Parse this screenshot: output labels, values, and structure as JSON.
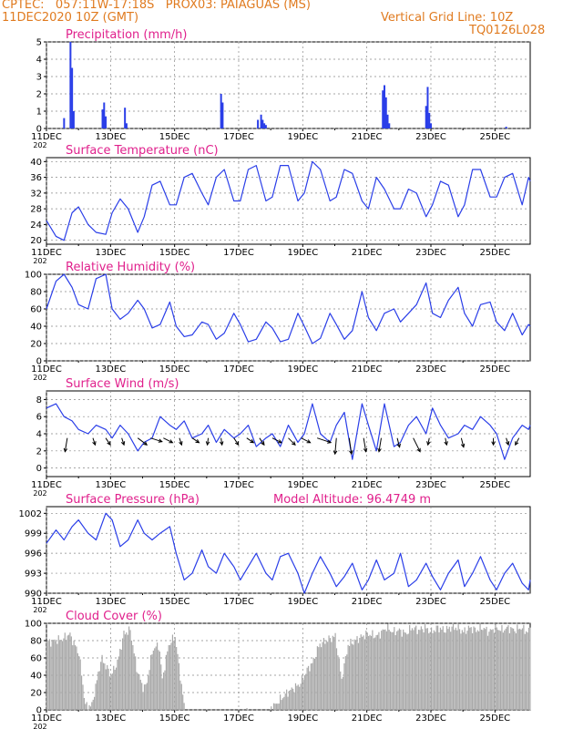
{
  "header": {
    "line1_left": "CPTEC:   057:11W-17:18S   PROX03: PAIAGUAS (MS)",
    "line2_left": "11DEC2020 10Z (GMT)",
    "line2_right": "Vertical Grid Line: 10Z",
    "line3_right": "TQ0126L028"
  },
  "colors": {
    "header": "#e07b20",
    "title": "#e0208c",
    "series": "#2a3ee8",
    "cloud": "#a9a9a9",
    "arrow": "#000000"
  },
  "x_axis": {
    "tick_labels": [
      "11DEC",
      "13DEC",
      "15DEC",
      "17DEC",
      "19DEC",
      "21DEC",
      "23DEC",
      "25DEC"
    ],
    "tick_days": [
      0,
      2,
      4,
      6,
      8,
      10,
      12,
      14
    ],
    "range_days": [
      0,
      15.1
    ],
    "gridlines": "dotted vertical every 24h at 10Z",
    "year_fragment": "202"
  },
  "chart_data": [
    {
      "type": "bar",
      "title": "Precipitation (mm/h)",
      "ylim": [
        0,
        5
      ],
      "yticks": [
        "0",
        "1",
        "2",
        "3",
        "4",
        "5"
      ],
      "series": [
        {
          "x": [
            0.55,
            0.75,
            0.8,
            0.85,
            1.75,
            1.8,
            1.85,
            2.45,
            2.5,
            5.45,
            5.5,
            6.6,
            6.7,
            6.75,
            6.8,
            6.85,
            10.5,
            10.55,
            10.6,
            10.65,
            10.7,
            11.85,
            11.9,
            11.95,
            12.0,
            14.35
          ],
          "values": [
            0.6,
            5.0,
            3.5,
            1.0,
            1.1,
            1.5,
            0.7,
            1.2,
            0.3,
            2.0,
            1.5,
            0.5,
            0.8,
            0.5,
            0.3,
            0.2,
            2.2,
            2.5,
            1.8,
            0.8,
            0.3,
            1.3,
            2.4,
            0.9,
            0.3,
            0.1
          ]
        }
      ]
    },
    {
      "type": "line",
      "title": "Surface Temperature (nC)",
      "ylim": [
        19,
        41
      ],
      "yticks": [
        "20",
        "24",
        "28",
        "32",
        "36",
        "40"
      ],
      "series": [
        {
          "x": [
            0,
            0.3,
            0.55,
            0.8,
            1.0,
            1.3,
            1.55,
            1.85,
            2.05,
            2.3,
            2.55,
            2.85,
            3.05,
            3.3,
            3.55,
            3.85,
            4.05,
            4.3,
            4.55,
            4.85,
            5.05,
            5.3,
            5.55,
            5.85,
            6.05,
            6.3,
            6.55,
            6.85,
            7.05,
            7.3,
            7.55,
            7.85,
            8.05,
            8.3,
            8.55,
            8.85,
            9.05,
            9.3,
            9.55,
            9.85,
            10.05,
            10.3,
            10.55,
            10.85,
            11.05,
            11.3,
            11.55,
            11.85,
            12.05,
            12.3,
            12.55,
            12.85,
            13.05,
            13.3,
            13.55,
            13.85,
            14.05,
            14.3,
            14.55,
            14.85,
            15.05,
            15.1
          ],
          "values": [
            25,
            21,
            20,
            27,
            28.5,
            24,
            22,
            21.5,
            27,
            30.5,
            28,
            22,
            26,
            34,
            35,
            29,
            29,
            36,
            37,
            32,
            29,
            36,
            38,
            30,
            30,
            38,
            39,
            30,
            31,
            39,
            39,
            30,
            32,
            40,
            38,
            30,
            31,
            38,
            37,
            30,
            28,
            36,
            33,
            28,
            28,
            33,
            32,
            26,
            29,
            35,
            34,
            26,
            29,
            38,
            38,
            31,
            31,
            36,
            37,
            29,
            36,
            35
          ]
        }
      ]
    },
    {
      "type": "line",
      "title": "Relative Humidity (%)",
      "ylim": [
        0,
        100
      ],
      "yticks": [
        "0",
        "20",
        "40",
        "60",
        "80",
        "100"
      ],
      "series": [
        {
          "x": [
            0,
            0.3,
            0.55,
            0.8,
            1.0,
            1.3,
            1.55,
            1.85,
            2.05,
            2.3,
            2.55,
            2.85,
            3.05,
            3.3,
            3.55,
            3.85,
            4.05,
            4.3,
            4.55,
            4.85,
            5.05,
            5.3,
            5.55,
            5.85,
            6.05,
            6.3,
            6.55,
            6.85,
            7.05,
            7.3,
            7.55,
            7.85,
            8.05,
            8.3,
            8.55,
            8.85,
            9.05,
            9.3,
            9.55,
            9.85,
            10.05,
            10.3,
            10.55,
            10.85,
            11.05,
            11.3,
            11.55,
            11.85,
            12.05,
            12.3,
            12.55,
            12.85,
            13.05,
            13.3,
            13.55,
            13.85,
            14.05,
            14.3,
            14.55,
            14.85,
            15.05,
            15.1
          ],
          "values": [
            60,
            92,
            100,
            85,
            65,
            60,
            95,
            100,
            60,
            48,
            55,
            70,
            60,
            38,
            42,
            68,
            40,
            28,
            30,
            45,
            42,
            25,
            32,
            55,
            42,
            22,
            25,
            45,
            38,
            22,
            25,
            55,
            40,
            20,
            26,
            55,
            42,
            25,
            35,
            80,
            50,
            35,
            55,
            60,
            45,
            55,
            65,
            90,
            55,
            50,
            70,
            85,
            55,
            40,
            65,
            68,
            45,
            35,
            55,
            30,
            42,
            40
          ]
        }
      ]
    },
    {
      "type": "line",
      "title": "Surface Wind (m/s)",
      "ylim": [
        -1,
        9
      ],
      "yticks": [
        "0",
        "2",
        "4",
        "6",
        "8"
      ],
      "series": [
        {
          "x": [
            0,
            0.3,
            0.55,
            0.8,
            1.0,
            1.3,
            1.55,
            1.85,
            2.05,
            2.3,
            2.55,
            2.85,
            3.05,
            3.3,
            3.55,
            3.85,
            4.05,
            4.3,
            4.55,
            4.85,
            5.05,
            5.3,
            5.55,
            5.85,
            6.05,
            6.3,
            6.55,
            6.85,
            7.05,
            7.3,
            7.55,
            7.85,
            8.05,
            8.3,
            8.55,
            8.85,
            9.05,
            9.3,
            9.55,
            9.85,
            10.05,
            10.3,
            10.55,
            10.85,
            11.05,
            11.3,
            11.55,
            11.85,
            12.05,
            12.3,
            12.55,
            12.85,
            13.05,
            13.3,
            13.55,
            13.85,
            14.05,
            14.3,
            14.55,
            14.85,
            15.05,
            15.1
          ],
          "values": [
            7,
            7.5,
            6,
            5.5,
            4.5,
            4,
            5,
            4.5,
            3.5,
            5,
            4,
            2,
            3,
            3.5,
            6,
            5,
            4.5,
            5.5,
            3.5,
            4,
            5,
            3,
            4.5,
            3.5,
            4,
            5,
            2.5,
            3.5,
            4,
            2.5,
            5,
            3,
            4,
            7.5,
            4,
            3,
            5,
            6.5,
            1,
            7.5,
            5,
            2,
            7.5,
            2.5,
            3,
            5,
            6,
            4,
            7,
            5,
            3.5,
            4,
            5,
            4.5,
            6,
            5,
            4,
            1,
            3.5,
            5,
            4.5,
            5
          ]
        }
      ],
      "vectors": {
        "x": [
          0.65,
          1.45,
          1.85,
          2.35,
          2.85,
          3.25,
          3.65,
          4.15,
          4.55,
          5.05,
          5.45,
          5.85,
          6.25,
          6.65,
          7.05,
          7.55,
          7.95,
          8.45,
          9.05,
          9.45,
          9.9,
          10.45,
          10.95,
          11.45,
          11.95,
          12.45,
          12.95,
          13.95,
          14.35,
          14.75
        ],
        "u": [
          -0.5,
          0.5,
          1.0,
          0.5,
          2.0,
          2.5,
          2.0,
          0.5,
          1.5,
          -0.2,
          0.2,
          1.0,
          1.5,
          1.0,
          2.0,
          1.5,
          2.0,
          3.0,
          -0.3,
          0.5,
          0.5,
          -0.5,
          0.5,
          1.5,
          -0.3,
          0.3,
          0.5,
          0.0,
          0.5,
          -0.8
        ],
        "v": [
          -3.0,
          -1.5,
          -1.5,
          -1.5,
          -1.5,
          -0.8,
          -1.0,
          -1.5,
          -1.0,
          -1.5,
          -1.5,
          -1.5,
          -1.0,
          -1.5,
          -1.0,
          -1.5,
          -1.0,
          -1.0,
          -3.5,
          -3.5,
          -3.0,
          -3.0,
          -2.0,
          -3.0,
          -1.5,
          -1.5,
          -2.0,
          -1.5,
          -1.5,
          -1.5
        ]
      }
    },
    {
      "type": "line",
      "title": "Surface Pressure (hPa)",
      "annotation": "Model Altitude: 96.4749  m",
      "ylim": [
        990,
        1003
      ],
      "yticks": [
        "990",
        "993",
        "996",
        "999",
        "1002"
      ],
      "series": [
        {
          "x": [
            0,
            0.3,
            0.55,
            0.8,
            1.0,
            1.3,
            1.55,
            1.85,
            2.05,
            2.3,
            2.55,
            2.85,
            3.05,
            3.3,
            3.55,
            3.85,
            4.05,
            4.3,
            4.55,
            4.85,
            5.05,
            5.3,
            5.55,
            5.85,
            6.05,
            6.3,
            6.55,
            6.85,
            7.05,
            7.3,
            7.55,
            7.85,
            8.05,
            8.3,
            8.55,
            8.85,
            9.05,
            9.3,
            9.55,
            9.85,
            10.05,
            10.3,
            10.55,
            10.85,
            11.05,
            11.3,
            11.55,
            11.85,
            12.05,
            12.3,
            12.55,
            12.85,
            13.05,
            13.3,
            13.55,
            13.85,
            14.05,
            14.3,
            14.55,
            14.85,
            15.05,
            15.1
          ],
          "values": [
            997.5,
            999.5,
            998,
            1000,
            1001,
            999,
            998,
            1002,
            1001,
            997,
            998,
            1001,
            999,
            998,
            999,
            1000,
            996,
            992,
            993,
            996.5,
            994,
            993,
            996,
            994,
            992,
            994,
            996,
            993,
            992,
            995.5,
            996,
            993,
            990,
            993,
            995.5,
            993,
            991,
            992.5,
            994.5,
            990.5,
            992,
            995,
            992,
            993,
            996,
            991,
            992,
            994.5,
            992.5,
            990.5,
            993,
            995,
            991,
            993,
            995.5,
            992,
            990.5,
            993,
            994.5,
            991.5,
            990.5,
            992
          ]
        }
      ]
    },
    {
      "type": "bar",
      "title": "Cloud Cover (%)",
      "ylim": [
        0,
        100
      ],
      "yticks": [
        "0",
        "20",
        "40",
        "60",
        "80",
        "100"
      ],
      "series": [
        {
          "x": [
            0.0,
            0.5,
            0.7,
            1.0,
            1.2,
            1.4,
            1.7,
            2.0,
            2.2,
            2.4,
            2.6,
            2.8,
            3.0,
            3.1,
            3.3,
            3.5,
            3.6,
            3.8,
            4.0,
            4.3,
            4.6,
            4.9,
            5.1,
            5.3,
            5.5,
            5.9,
            6.1,
            6.2,
            6.3,
            6.6,
            6.9,
            7.1,
            7.5,
            7.9,
            8.1,
            8.3,
            8.5,
            8.7,
            9.0,
            9.2,
            9.4,
            9.7,
            10.0,
            10.3,
            10.6,
            10.8,
            11.0,
            11.2,
            11.4,
            11.6,
            11.8,
            12.0,
            12.2,
            12.4,
            12.6,
            12.8,
            13.0,
            13.2,
            13.4,
            13.6,
            13.8,
            14.0,
            14.2,
            14.4,
            14.6,
            14.8,
            15.0,
            15.1
          ],
          "values": [
            78,
            82,
            88,
            65,
            5,
            5,
            60,
            40,
            55,
            88,
            92,
            48,
            25,
            28,
            70,
            75,
            35,
            75,
            85,
            0,
            0,
            0,
            0,
            0,
            0,
            0,
            0,
            0,
            0,
            0,
            0,
            5,
            20,
            30,
            45,
            55,
            75,
            80,
            85,
            35,
            75,
            82,
            88,
            85,
            95,
            90,
            92,
            88,
            95,
            92,
            95,
            90,
            95,
            92,
            95,
            95,
            90,
            95,
            92,
            95,
            90,
            95,
            92,
            95,
            92,
            95,
            90,
            95
          ],
          "gaps_days": [
            [
              4.3,
              5.7
            ],
            [
              5.75,
              6.2
            ],
            [
              6.3,
              7.0
            ]
          ]
        }
      ]
    }
  ]
}
